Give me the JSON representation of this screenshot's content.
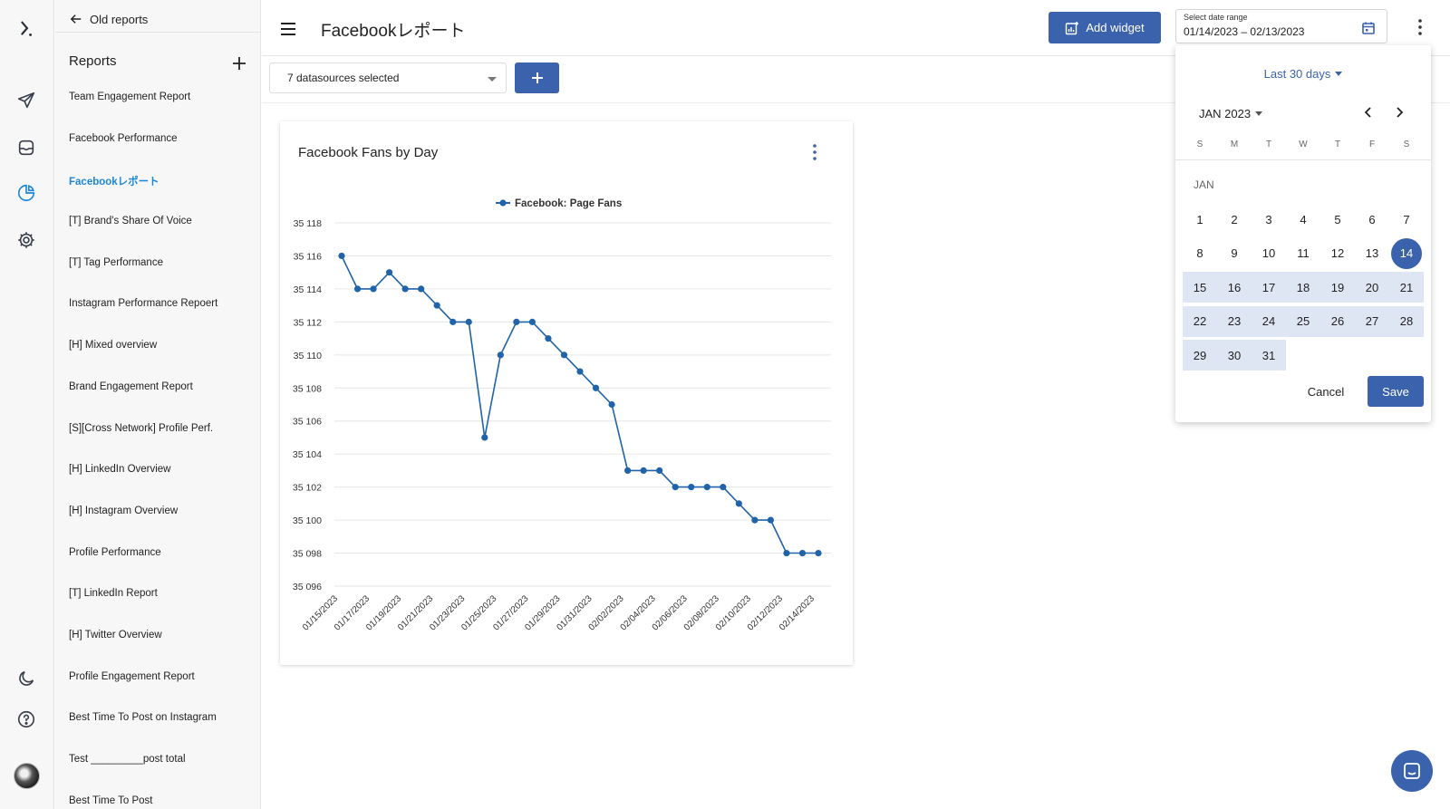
{
  "sidebar": {
    "back_label": "Old reports",
    "reports_title": "Reports",
    "items": [
      {
        "label": "Team Engagement Report",
        "active": false
      },
      {
        "label": "Facebook Performance",
        "active": false
      },
      {
        "label": "Facebookレポート",
        "active": true
      },
      {
        "label": "[T] Brand's Share Of Voice",
        "active": false
      },
      {
        "label": "[T] Tag Performance",
        "active": false
      },
      {
        "label": "Instagram Performance Repoert",
        "active": false
      },
      {
        "label": "[H] Mixed overview",
        "active": false
      },
      {
        "label": "Brand Engagement Report",
        "active": false
      },
      {
        "label": "[S][Cross Network] Profile Perf.",
        "active": false
      },
      {
        "label": "[H] LinkedIn Overview",
        "active": false
      },
      {
        "label": "[H] Instagram Overview",
        "active": false
      },
      {
        "label": "Profile Performance",
        "active": false
      },
      {
        "label": "[T] LinkedIn Report",
        "active": false
      },
      {
        "label": "[H] Twitter Overview",
        "active": false
      },
      {
        "label": "Profile Engagement Report",
        "active": false
      },
      {
        "label": "Best Time To Post on Instagram",
        "active": false
      },
      {
        "label": "Test _________post total",
        "active": false
      },
      {
        "label": "Best Time To Post",
        "active": false
      }
    ]
  },
  "rail": {
    "icons": [
      "logo-icon",
      "send-icon",
      "inbox-icon",
      "reports-icon",
      "settings-icon",
      "dark-mode-icon",
      "help-icon",
      "avatar"
    ]
  },
  "header": {
    "title": "Facebookレポート",
    "add_widget_label": "Add widget",
    "date_label": "Select date range",
    "date_value": "01/14/2023 – 02/13/2023"
  },
  "toolbar": {
    "datasource_value": "7 datasources selected"
  },
  "widget": {
    "title": "Facebook Fans by Day"
  },
  "chart_data": {
    "type": "line",
    "title": "Facebook Fans by Day",
    "xlabel": "",
    "ylabel": "",
    "series": [
      {
        "name": "Facebook: Page Fans",
        "color": "#2063a8",
        "values": [
          35116,
          35114,
          35114,
          35115,
          35114,
          35114,
          35113,
          35112,
          35112,
          35105,
          35110,
          35112,
          35112,
          35111,
          35110,
          35109,
          35108,
          35107,
          35103,
          35103,
          35103,
          35102,
          35102,
          35102,
          35102,
          35101,
          35100,
          35100,
          35098,
          35098,
          35098
        ]
      }
    ],
    "x": [
      "01/15/2023",
      "01/16/2023",
      "01/17/2023",
      "01/18/2023",
      "01/19/2023",
      "01/20/2023",
      "01/21/2023",
      "01/22/2023",
      "01/23/2023",
      "01/24/2023",
      "01/25/2023",
      "01/26/2023",
      "01/27/2023",
      "01/28/2023",
      "01/29/2023",
      "01/30/2023",
      "01/31/2023",
      "02/01/2023",
      "02/02/2023",
      "02/03/2023",
      "02/04/2023",
      "02/05/2023",
      "02/06/2023",
      "02/07/2023",
      "02/08/2023",
      "02/09/2023",
      "02/10/2023",
      "02/11/2023",
      "02/12/2023",
      "02/13/2023",
      "02/14/2023"
    ],
    "xtick_labels": [
      "01/15/2023",
      "01/17/2023",
      "01/19/2023",
      "01/21/2023",
      "01/23/2023",
      "01/25/2023",
      "01/27/2023",
      "01/29/2023",
      "01/31/2023",
      "02/02/2023",
      "02/04/2023",
      "02/06/2023",
      "02/08/2023",
      "02/10/2023",
      "02/12/2023",
      "02/14/2023"
    ],
    "yticks": [
      35096,
      35098,
      35100,
      35102,
      35104,
      35106,
      35108,
      35110,
      35112,
      35114,
      35116,
      35118
    ],
    "ytick_labels": [
      "35 096",
      "35 098",
      "35 100",
      "35 102",
      "35 104",
      "35 106",
      "35 108",
      "35 110",
      "35 112",
      "35 114",
      "35 116",
      "35 118"
    ],
    "ylim": [
      35096,
      35118
    ],
    "grid": true,
    "legend": "top-center"
  },
  "datepicker": {
    "preset_label": "Last 30 days",
    "month_label": "JAN 2023",
    "weekdays": [
      "S",
      "M",
      "T",
      "W",
      "T",
      "F",
      "S"
    ],
    "month_short": "JAN",
    "days_in_month": 31,
    "first_weekday": 0,
    "range_start": 14,
    "selected_day": 14,
    "cancel_label": "Cancel",
    "save_label": "Save"
  },
  "colors": {
    "primary": "#3a62ad",
    "active_link": "#1f86d6",
    "range_fill": "#dfe6f3"
  }
}
